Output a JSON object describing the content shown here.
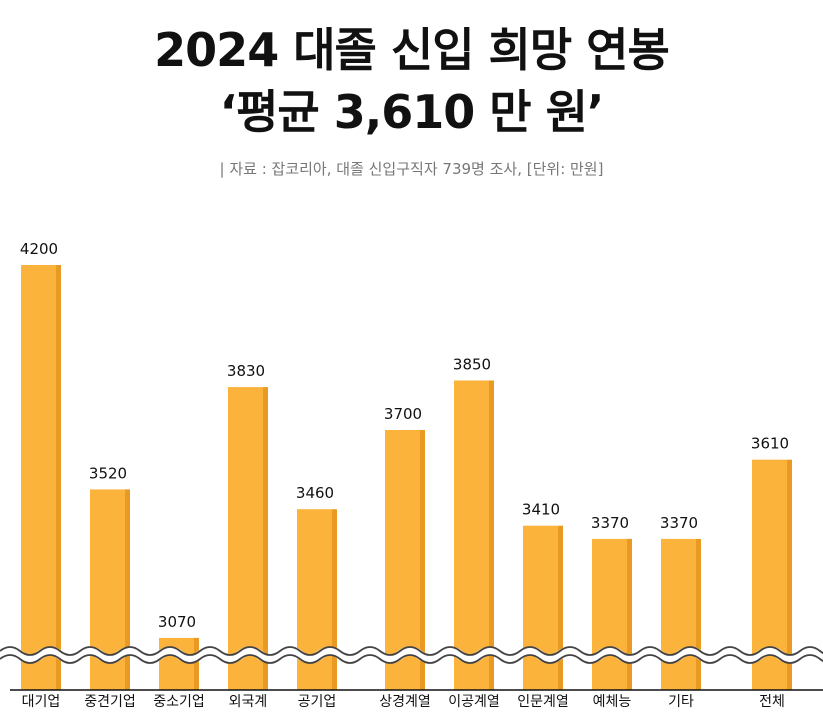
{
  "header": {
    "title_line1": "2024 대졸 신입 희망 연봉",
    "title_line2": "‘평균 3,610 만 원’",
    "source": "| 자료 : 잡코리아, 대졸 신입구직자 739명 조사, [단위: 만원]"
  },
  "colors": {
    "bar": "#FBB33C",
    "bar_shade": "#E89A22",
    "text": "#111111",
    "break_line": "#444444"
  },
  "chart_data": {
    "type": "bar",
    "categories": [
      "대기업",
      "중견기업",
      "중소기업",
      "외국계",
      "공기업",
      "상경계열",
      "이공계열",
      "인문계열",
      "예체능",
      "기타",
      "전체"
    ],
    "values": [
      4200,
      3520,
      3070,
      3830,
      3460,
      3700,
      3850,
      3410,
      3370,
      3370,
      3610
    ],
    "title": "2024 대졸 신입 희망 연봉",
    "xlabel": "",
    "ylabel": "",
    "axis_break": true,
    "grid": false,
    "data_labels": true
  }
}
